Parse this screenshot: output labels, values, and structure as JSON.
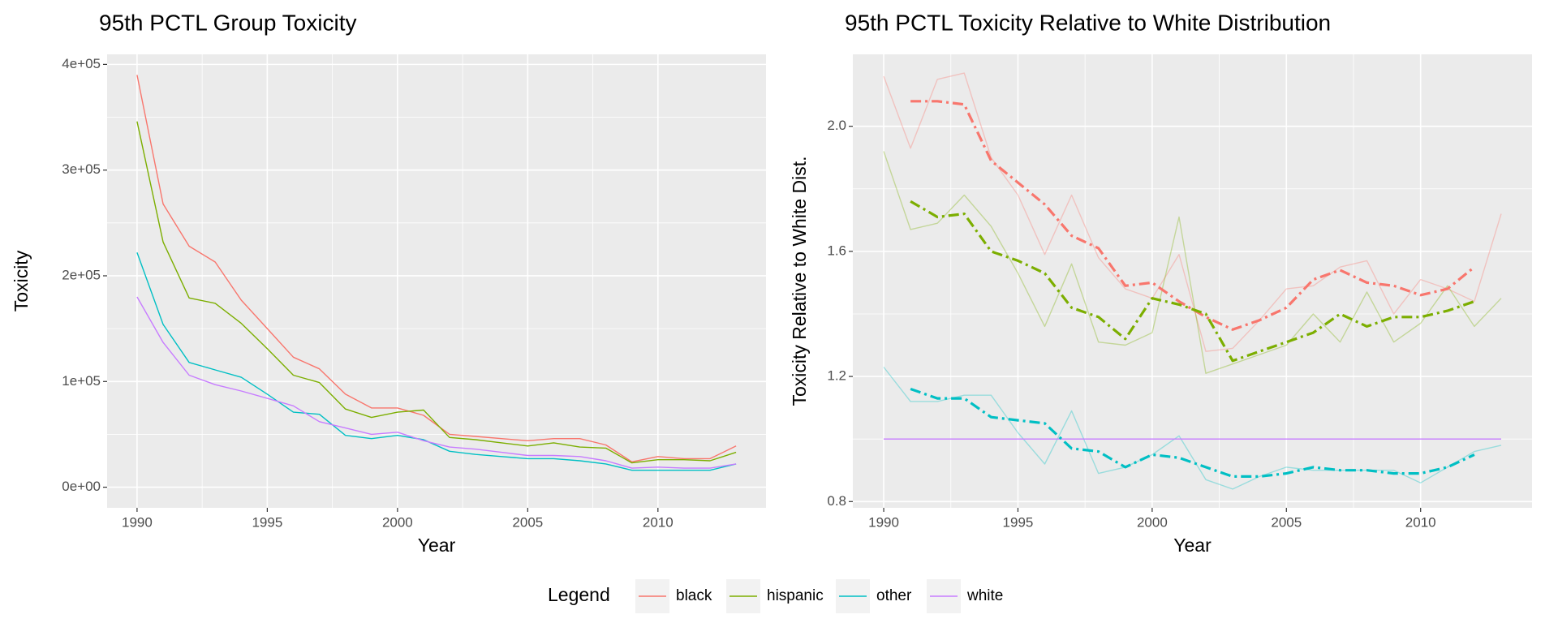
{
  "chart_data": [
    {
      "type": "line",
      "title": "95th PCTL Group Toxicity",
      "xlabel": "Year",
      "ylabel": "Toxicity",
      "x": [
        1990,
        1991,
        1992,
        1993,
        1994,
        1995,
        1996,
        1997,
        1998,
        1999,
        2000,
        2001,
        2002,
        2003,
        2004,
        2005,
        2006,
        2007,
        2008,
        2009,
        2010,
        2011,
        2012,
        2013
      ],
      "xlim": [
        1988.85,
        2014.15
      ],
      "xticks": [
        1990,
        1995,
        2000,
        2005,
        2010
      ],
      "ylim": [
        -19500,
        409500
      ],
      "yticks": [
        {
          "value": 0,
          "label": "0e+00"
        },
        {
          "value": 100000,
          "label": "1e+05"
        },
        {
          "value": 200000,
          "label": "2e+05"
        },
        {
          "value": 300000,
          "label": "3e+05"
        },
        {
          "value": 400000,
          "label": "4e+05"
        }
      ],
      "grid": true,
      "minor_grid": true,
      "series": [
        {
          "name": "black",
          "color": "#F8766D",
          "values": [
            390000,
            268000,
            228000,
            213000,
            177000,
            150000,
            123000,
            112000,
            88000,
            75000,
            75000,
            68000,
            50000,
            48000,
            46000,
            44000,
            46000,
            46000,
            40000,
            24000,
            29000,
            27000,
            27000,
            39000
          ]
        },
        {
          "name": "hispanic",
          "color": "#7CAE00",
          "values": [
            346000,
            232000,
            179000,
            174000,
            155000,
            131000,
            106000,
            99000,
            74000,
            66000,
            71000,
            73000,
            47000,
            45000,
            42000,
            39000,
            42000,
            38000,
            37000,
            23000,
            26000,
            26000,
            25000,
            33000
          ]
        },
        {
          "name": "other",
          "color": "#00BFC4",
          "values": [
            222000,
            154000,
            118000,
            111000,
            104000,
            88000,
            71000,
            69000,
            49000,
            46000,
            49000,
            45000,
            34000,
            31000,
            29000,
            27000,
            27000,
            25000,
            22000,
            16000,
            16000,
            16000,
            16000,
            22000
          ]
        },
        {
          "name": "white",
          "color": "#C77CFF",
          "values": [
            180000,
            137000,
            106000,
            97000,
            91000,
            84000,
            77000,
            62000,
            56000,
            50000,
            52000,
            44000,
            38000,
            36000,
            33000,
            30000,
            30000,
            29000,
            25000,
            18000,
            19000,
            18000,
            18000,
            22000
          ]
        }
      ]
    },
    {
      "type": "line",
      "title": "95th PCTL Toxicity Relative to White Distribution",
      "xlabel": "Year",
      "ylabel": "Toxicity Relative to White Dist.",
      "x": [
        1990,
        1991,
        1992,
        1993,
        1994,
        1995,
        1996,
        1997,
        1998,
        1999,
        2000,
        2001,
        2002,
        2003,
        2004,
        2005,
        2006,
        2007,
        2008,
        2009,
        2010,
        2011,
        2012,
        2013
      ],
      "xlim": [
        1988.85,
        2014.15
      ],
      "xticks": [
        1990,
        1995,
        2000,
        2005,
        2010
      ],
      "ylim": [
        0.78,
        2.23
      ],
      "yticks": [
        0.8,
        1.2,
        1.6,
        {
          "value": 2,
          "label": "2.0"
        }
      ],
      "grid": true,
      "minor_grid": true,
      "series": [
        {
          "color": "#F8766D",
          "opacity": 0.35,
          "values": [
            2.16,
            1.93,
            2.15,
            2.17,
            1.9,
            1.78,
            1.59,
            1.78,
            1.58,
            1.48,
            1.45,
            1.59,
            1.28,
            1.29,
            1.38,
            1.48,
            1.49,
            1.55,
            1.57,
            1.4,
            1.51,
            1.48,
            1.44,
            1.72
          ]
        },
        {
          "color": "#7CAE00",
          "opacity": 0.35,
          "values": [
            1.92,
            1.67,
            1.69,
            1.78,
            1.68,
            1.53,
            1.36,
            1.56,
            1.31,
            1.3,
            1.34,
            1.71,
            1.21,
            1.24,
            1.27,
            1.3,
            1.4,
            1.31,
            1.47,
            1.31,
            1.37,
            1.49,
            1.36,
            1.45
          ]
        },
        {
          "color": "#00BFC4",
          "opacity": 0.35,
          "values": [
            1.23,
            1.12,
            1.12,
            1.14,
            1.14,
            1.02,
            0.92,
            1.09,
            0.89,
            0.91,
            0.95,
            1.01,
            0.87,
            0.84,
            0.88,
            0.91,
            0.9,
            0.9,
            0.9,
            0.9,
            0.86,
            0.91,
            0.96,
            0.98
          ]
        },
        {
          "color": "#C77CFF",
          "values": [
            1,
            1,
            1,
            1,
            1,
            1,
            1,
            1,
            1,
            1,
            1,
            1,
            1,
            1,
            1,
            1,
            1,
            1,
            1,
            1,
            1,
            1,
            1,
            1
          ]
        },
        {
          "color": "#F8766D",
          "dashed": true,
          "values": [
            null,
            2.08,
            2.08,
            2.07,
            1.89,
            1.82,
            1.75,
            1.65,
            1.61,
            1.49,
            1.5,
            1.44,
            1.39,
            1.35,
            1.38,
            1.42,
            1.51,
            1.54,
            1.5,
            1.49,
            1.46,
            1.48,
            1.55,
            null
          ]
        },
        {
          "color": "#7CAE00",
          "dashed": true,
          "values": [
            null,
            1.76,
            1.71,
            1.72,
            1.6,
            1.57,
            1.53,
            1.42,
            1.39,
            1.32,
            1.45,
            1.43,
            1.4,
            1.25,
            1.28,
            1.31,
            1.34,
            1.4,
            1.36,
            1.39,
            1.39,
            1.41,
            1.44,
            null
          ]
        },
        {
          "color": "#00BFC4",
          "dashed": true,
          "values": [
            null,
            1.16,
            1.13,
            1.13,
            1.07,
            1.06,
            1.05,
            0.97,
            0.96,
            0.91,
            0.95,
            0.94,
            0.91,
            0.88,
            0.88,
            0.89,
            0.91,
            0.9,
            0.9,
            0.89,
            0.89,
            0.91,
            0.95,
            null
          ]
        }
      ]
    }
  ],
  "legend_title": "Legend"
}
